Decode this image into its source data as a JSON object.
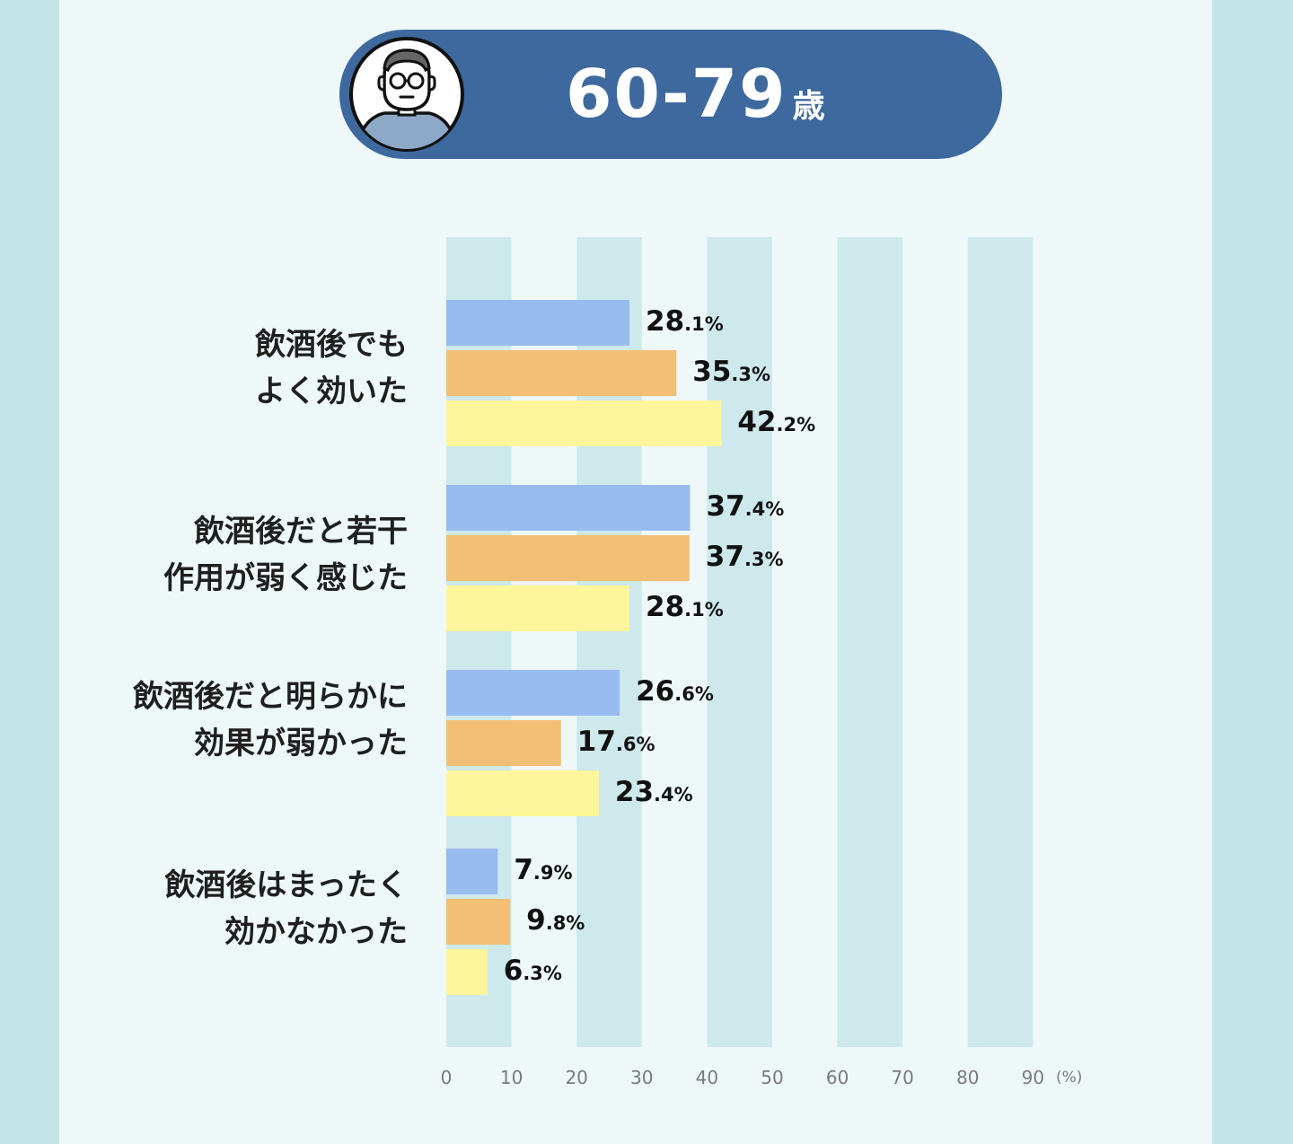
{
  "header": {
    "age_range": "60-79",
    "age_unit": "歳",
    "avatar_icon": "elderly-man-glasses-icon"
  },
  "colors": {
    "background_outer": "#c4e5e8",
    "background_inner": "#eef8f9",
    "header_pill": "#3e699e",
    "grid_band": "#cde9ec",
    "series": [
      "#98bbf0",
      "#f2bf76",
      "#fff59a"
    ]
  },
  "chart_data": {
    "type": "bar",
    "orientation": "horizontal",
    "unit_label": "(%)",
    "xlim": [
      0,
      90
    ],
    "xticks": [
      0,
      10,
      20,
      30,
      40,
      50,
      60,
      70,
      80,
      90
    ],
    "grid": "alternating vertical bands",
    "legend": "none",
    "categories": [
      [
        "飲酒後でも",
        "よく効いた"
      ],
      [
        "飲酒後だと若干",
        "作用が弱く感じた"
      ],
      [
        "飲酒後だと明らかに",
        "効果が弱かった"
      ],
      [
        "飲酒後はまったく",
        "効かなかった"
      ]
    ],
    "series": [
      {
        "color": "#98bbf0",
        "values": [
          28.1,
          37.4,
          26.6,
          7.9
        ]
      },
      {
        "color": "#f2bf76",
        "values": [
          35.3,
          37.3,
          17.6,
          9.8
        ]
      },
      {
        "color": "#fff59a",
        "values": [
          42.2,
          28.1,
          23.4,
          6.3
        ]
      }
    ],
    "value_labels": [
      [
        "28.1%",
        "37.4%",
        "26.6%",
        "7.9%"
      ],
      [
        "35.3%",
        "37.3%",
        "17.6%",
        "9.8%"
      ],
      [
        "42.2%",
        "28.1%",
        "23.4%",
        "6.3%"
      ]
    ]
  }
}
